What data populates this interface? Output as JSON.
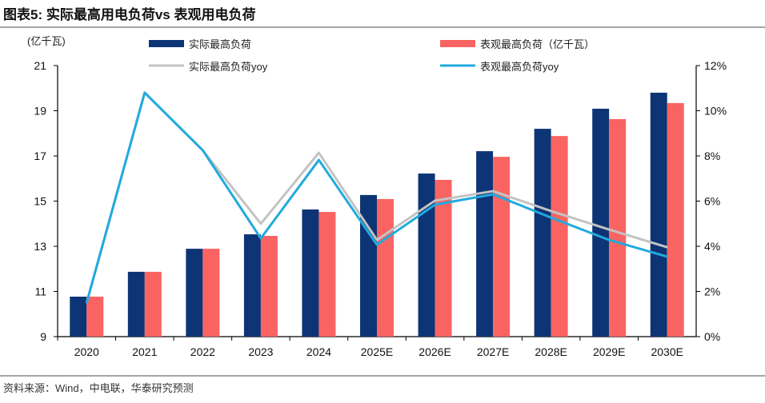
{
  "title": "图表5:  实际最高用电负荷vs 表观用电负荷",
  "source": "资料来源：Wind，中电联，华泰研究预测",
  "chart_data": {
    "type": "bar+line",
    "categories": [
      "2020",
      "2021",
      "2022",
      "2023",
      "2024",
      "2025E",
      "2026E",
      "2027E",
      "2028E",
      "2029E",
      "2030E"
    ],
    "left_axis": {
      "label": "(亿千瓦)",
      "ylim": [
        9,
        21
      ],
      "ticks": [
        "9",
        "11",
        "13",
        "15",
        "17",
        "19",
        "21"
      ]
    },
    "right_axis": {
      "ylim": [
        0,
        12
      ],
      "ticks": [
        "0%",
        "2%",
        "4%",
        "6%",
        "8%",
        "10%",
        "12%"
      ]
    },
    "grid": false,
    "legend": "top",
    "series": [
      {
        "name": "实际最高负荷",
        "type": "bar",
        "axis": "left",
        "color": "#0d3575",
        "values": [
          10.77,
          11.87,
          12.89,
          13.53,
          14.63,
          15.27,
          16.22,
          17.21,
          18.2,
          19.09,
          19.8
        ]
      },
      {
        "name": "表观最高负荷（亿千瓦）",
        "type": "bar",
        "axis": "left",
        "color": "#f96462",
        "values": [
          10.77,
          11.87,
          12.89,
          13.46,
          14.52,
          15.09,
          15.94,
          16.96,
          17.88,
          18.63,
          19.34
        ]
      },
      {
        "name": "实际最高负荷yoy",
        "type": "line",
        "axis": "right",
        "color": "#c3c3c3",
        "values": [
          1.5,
          10.8,
          8.25,
          5.0,
          8.14,
          4.28,
          6.02,
          6.44,
          5.56,
          4.74,
          3.96
        ]
      },
      {
        "name": "表观最高负荷yoy",
        "type": "line",
        "axis": "right",
        "color": "#22aadd",
        "values": [
          1.5,
          10.8,
          8.25,
          4.35,
          7.82,
          4.07,
          5.84,
          6.3,
          5.27,
          4.28,
          3.54
        ]
      }
    ]
  }
}
